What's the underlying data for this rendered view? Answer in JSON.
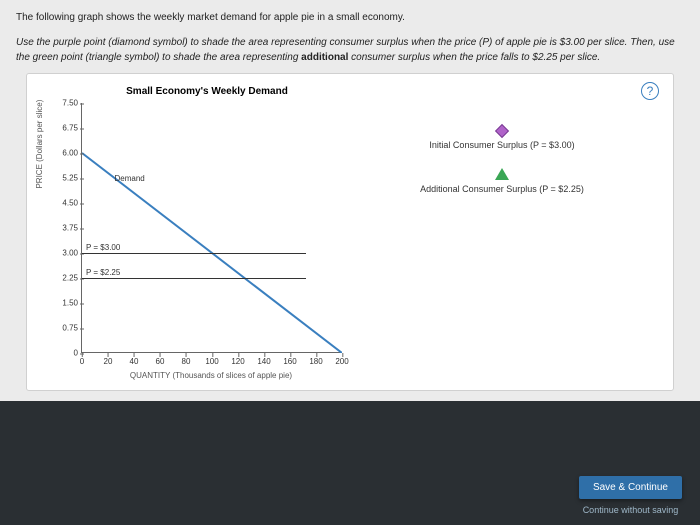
{
  "intro": "The following graph shows the weekly market demand for apple pie in a small economy.",
  "instructions_pre": "Use the purple point (diamond symbol) to shade the area representing consumer surplus when the price (P) of apple pie is $3.00 per slice. Then, use the green point (triangle symbol) to shade the area representing ",
  "instructions_bold": "additional",
  "instructions_post": " consumer surplus when the price falls to $2.25 per slice.",
  "help_icon": "?",
  "chart": {
    "title": "Small Economy's Weekly Demand",
    "type": "line",
    "ylabel": "PRICE (Dollars per slice)",
    "xlabel": "QUANTITY (Thousands of slices of apple pie)",
    "xlim": [
      0,
      200
    ],
    "ylim": [
      0,
      7.5
    ],
    "xticks": [
      0,
      20,
      40,
      60,
      80,
      100,
      120,
      140,
      160,
      180,
      200
    ],
    "yticks": [
      "0",
      "0.75",
      "1.50",
      "2.25",
      "3.00",
      "3.75",
      "4.50",
      "5.25",
      "6.00",
      "6.75",
      "7.50"
    ],
    "demand": {
      "label": "Demand",
      "x": [
        0,
        200
      ],
      "y": [
        6.0,
        0
      ],
      "color": "#3a7fbf",
      "width": 2
    },
    "price_lines": [
      {
        "label": "P = $3.00",
        "y": 3.0,
        "x_end": 172,
        "color": "#333333"
      },
      {
        "label": "P = $2.25",
        "y": 2.25,
        "x_end": 172,
        "color": "#333333"
      }
    ],
    "background_color": "#ffffff",
    "axis_color": "#666666"
  },
  "legend": {
    "diamond": {
      "label": "Initial Consumer Surplus (P = $3.00)",
      "color": "#b063c9"
    },
    "triangle": {
      "label": "Additional Consumer Surplus (P = $2.25)",
      "color": "#3aa655"
    }
  },
  "buttons": {
    "save": "Save & Continue",
    "continue_without": "Continue without saving"
  }
}
